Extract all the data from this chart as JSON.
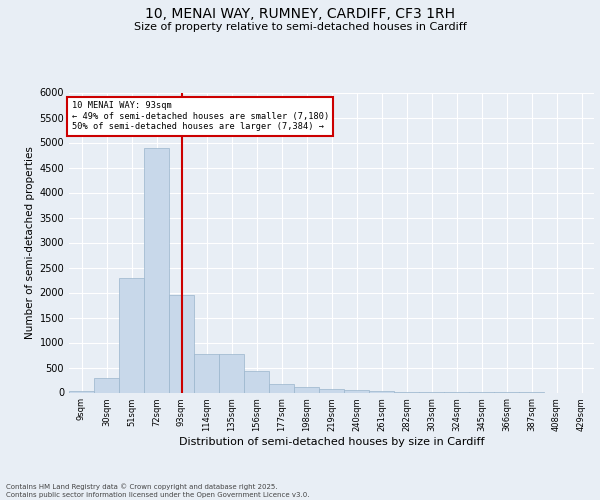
{
  "title_line1": "10, MENAI WAY, RUMNEY, CARDIFF, CF3 1RH",
  "title_line2": "Size of property relative to semi-detached houses in Cardiff",
  "xlabel": "Distribution of semi-detached houses by size in Cardiff",
  "ylabel": "Number of semi-detached properties",
  "property_bin_index": 4,
  "property_label": "10 MENAI WAY: 93sqm",
  "pct_smaller": 49,
  "pct_smaller_count": "7,180",
  "pct_larger": 50,
  "pct_larger_count": "7,384",
  "bar_color": "#c8d8ea",
  "bar_edge_color": "#9ab5cc",
  "vline_color": "#cc0000",
  "annotation_box_edge": "#cc0000",
  "background_color": "#e8eef5",
  "grid_color": "#ffffff",
  "categories": [
    "9sqm",
    "30sqm",
    "51sqm",
    "72sqm",
    "93sqm",
    "114sqm",
    "135sqm",
    "156sqm",
    "177sqm",
    "198sqm",
    "219sqm",
    "240sqm",
    "261sqm",
    "282sqm",
    "303sqm",
    "324sqm",
    "345sqm",
    "366sqm",
    "387sqm",
    "408sqm",
    "429sqm"
  ],
  "values": [
    30,
    300,
    2300,
    4900,
    1950,
    780,
    780,
    430,
    180,
    110,
    75,
    55,
    25,
    20,
    10,
    5,
    3,
    2,
    1,
    0,
    0
  ],
  "ylim": [
    0,
    6000
  ],
  "yticks": [
    0,
    500,
    1000,
    1500,
    2000,
    2500,
    3000,
    3500,
    4000,
    4500,
    5000,
    5500,
    6000
  ],
  "footnote": "Contains HM Land Registry data © Crown copyright and database right 2025.\nContains public sector information licensed under the Open Government Licence v3.0.",
  "fig_width": 6.0,
  "fig_height": 5.0,
  "dpi": 100
}
